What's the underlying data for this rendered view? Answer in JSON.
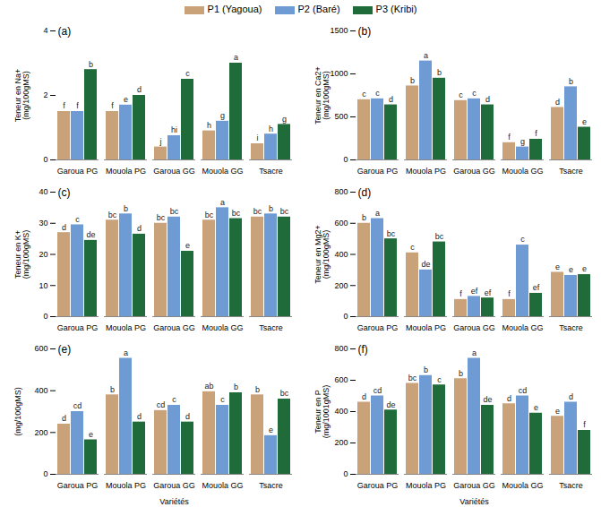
{
  "chart_data": [
    {
      "type": "bar",
      "panel": "(a)",
      "y_label": [
        "Teneur en Na+",
        "(mg/100gMS)"
      ],
      "categories": [
        "Garoua PG",
        "Mouola PG",
        "Garoua GG",
        "Mouola GG",
        "Tsacre"
      ],
      "series": [
        {
          "name": "P1 (Yagoua)",
          "color": "#c9a27a",
          "values": [
            1.5,
            1.5,
            0.4,
            0.9,
            0.5
          ],
          "letters": [
            "f",
            "f",
            "j",
            "h",
            "i"
          ]
        },
        {
          "name": "P2 (Baré)",
          "color": "#6f9bd4",
          "values": [
            1.5,
            1.7,
            0.75,
            1.2,
            0.8
          ],
          "letters": [
            "f",
            "e",
            "hi",
            "g",
            "h"
          ]
        },
        {
          "name": "P3 (Kribi)",
          "color": "#1f6b3a",
          "values": [
            2.8,
            2.0,
            2.5,
            3.0,
            1.1
          ],
          "letters": [
            "b",
            "d",
            "c",
            "a",
            "g"
          ]
        }
      ],
      "ylim": [
        0,
        4
      ],
      "yticks": [
        0,
        2,
        4
      ],
      "legend": "top"
    },
    {
      "type": "bar",
      "panel": "(b)",
      "y_label": [
        "Teneur en Ca2+",
        "(mg/100gMS)"
      ],
      "categories": [
        "Garoua PG",
        "Mouola PG",
        "Garoua GG",
        "Mouola GG",
        "Tsacre"
      ],
      "series": [
        {
          "name": "P1 (Yagoua)",
          "color": "#c9a27a",
          "values": [
            700,
            860,
            690,
            200,
            610
          ],
          "letters": [
            "c",
            "b",
            "c",
            "f",
            "d"
          ]
        },
        {
          "name": "P2 (Baré)",
          "color": "#6f9bd4",
          "values": [
            710,
            1150,
            710,
            150,
            850
          ],
          "letters": [
            "c",
            "a",
            "c",
            "g",
            "b"
          ]
        },
        {
          "name": "P3 (Kribi)",
          "color": "#1f6b3a",
          "values": [
            640,
            950,
            640,
            240,
            380
          ],
          "letters": [
            "d",
            "b",
            "d",
            "f",
            "e"
          ]
        }
      ],
      "ylim": [
        0,
        1500
      ],
      "yticks": [
        0,
        500,
        1000,
        1500
      ]
    },
    {
      "type": "bar",
      "panel": "(c)",
      "y_label": [
        "Teneur en K+",
        "(mg/100gMS)"
      ],
      "categories": [
        "Garoua PG",
        "Mouola PG",
        "Garoua GG",
        "Mouola GG",
        "Tsacre"
      ],
      "series": [
        {
          "name": "P1 (Yagoua)",
          "color": "#c9a27a",
          "values": [
            27,
            31,
            30,
            31,
            32
          ],
          "letters": [
            "d",
            "bc",
            "bc",
            "bc",
            "bc"
          ]
        },
        {
          "name": "P2 (Baré)",
          "color": "#6f9bd4",
          "values": [
            29.5,
            33,
            32,
            35,
            33
          ],
          "letters": [
            "c",
            "b",
            "bc",
            "a",
            "b"
          ]
        },
        {
          "name": "P3 (Kribi)",
          "color": "#1f6b3a",
          "values": [
            24.5,
            26.5,
            21,
            31.5,
            32
          ],
          "letters": [
            "de",
            "d",
            "e",
            "bc",
            "bc"
          ]
        }
      ],
      "ylim": [
        0,
        40
      ],
      "yticks": [
        0,
        10,
        20,
        30,
        40
      ]
    },
    {
      "type": "bar",
      "panel": "(d)",
      "y_label": [
        "Teneur en Mg2+",
        "(mg/100gMS)"
      ],
      "categories": [
        "Garoua PG",
        "Mouola PG",
        "Garoua GG",
        "Mouola GG",
        "Tsacre"
      ],
      "series": [
        {
          "name": "P1 (Yagoua)",
          "color": "#c9a27a",
          "values": [
            600,
            410,
            110,
            110,
            285
          ],
          "letters": [
            "b",
            "c",
            "f",
            "f",
            "e"
          ]
        },
        {
          "name": "P2 (Baré)",
          "color": "#6f9bd4",
          "values": [
            630,
            300,
            130,
            460,
            265
          ],
          "letters": [
            "a",
            "de",
            "ef",
            "c",
            "e"
          ]
        },
        {
          "name": "P3 (Kribi)",
          "color": "#1f6b3a",
          "values": [
            500,
            480,
            120,
            150,
            270
          ],
          "letters": [
            "bc",
            "bc",
            "ef",
            "ef",
            "e"
          ]
        }
      ],
      "ylim": [
        0,
        800
      ],
      "yticks": [
        0,
        200,
        400,
        600,
        800
      ]
    },
    {
      "type": "bar",
      "panel": "(e)",
      "y_label": [
        "(mg/100gMS)"
      ],
      "x_label": "Variétés",
      "categories": [
        "Garoua PG",
        "Mouola PG",
        "Garoua GG",
        "Mouola GG",
        "Tsacre"
      ],
      "series": [
        {
          "name": "P1 (Yagoua)",
          "color": "#c9a27a",
          "values": [
            240,
            380,
            305,
            395,
            380
          ],
          "letters": [
            "d",
            "b",
            "cd",
            "ab",
            "b"
          ]
        },
        {
          "name": "P2 (Baré)",
          "color": "#6f9bd4",
          "values": [
            300,
            555,
            330,
            330,
            185
          ],
          "letters": [
            "cd",
            "a",
            "c",
            "c",
            "e"
          ]
        },
        {
          "name": "P3 (Kribi)",
          "color": "#1f6b3a",
          "values": [
            165,
            250,
            250,
            390,
            360
          ],
          "letters": [
            "e",
            "d",
            "d",
            "b",
            "bc"
          ]
        }
      ],
      "ylim": [
        0,
        600
      ],
      "yticks": [
        0,
        200,
        400,
        600
      ]
    },
    {
      "type": "bar",
      "panel": "(f)",
      "y_label": [
        "Teneur en P",
        "(mg/1001gMS)"
      ],
      "x_label": "Variétés",
      "categories": [
        "Garoua PG",
        "Mouola PG",
        "Garoua GG",
        "Mouola GG",
        "Tsacre"
      ],
      "series": [
        {
          "name": "P1 (Yagoua)",
          "color": "#c9a27a",
          "values": [
            460,
            580,
            610,
            450,
            370
          ],
          "letters": [
            "d",
            "bc",
            "b",
            "d",
            "e"
          ]
        },
        {
          "name": "P2 (Baré)",
          "color": "#6f9bd4",
          "values": [
            500,
            630,
            740,
            500,
            460
          ],
          "letters": [
            "cd",
            "b",
            "a",
            "cd",
            "d"
          ]
        },
        {
          "name": "P3 (Kribi)",
          "color": "#1f6b3a",
          "values": [
            410,
            570,
            440,
            390,
            280
          ],
          "letters": [
            "de",
            "c",
            "de",
            "e",
            "f"
          ]
        }
      ],
      "ylim": [
        0,
        800
      ],
      "yticks": [
        0,
        200,
        400,
        600,
        800
      ]
    }
  ]
}
